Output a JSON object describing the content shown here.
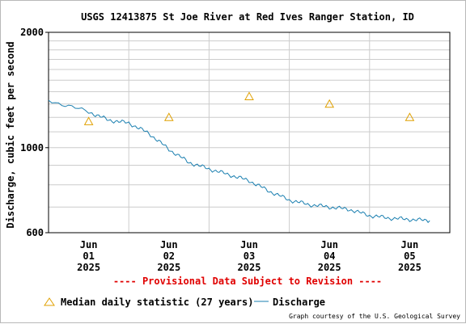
{
  "chart_data": {
    "type": "line",
    "title": "USGS 12413875 St Joe River at Red Ives Ranger Station, ID",
    "ylabel": "Discharge, cubic feet per second",
    "yscale": "log",
    "ylim": [
      600,
      2000
    ],
    "yticks": [
      "2000",
      "1000",
      "600"
    ],
    "xlim": [
      "2025-05-31 12:00",
      "2025-06-05 12:00"
    ],
    "xticks": [
      {
        "day": "Jun",
        "date": "01",
        "year": "2025"
      },
      {
        "day": "Jun",
        "date": "02",
        "year": "2025"
      },
      {
        "day": "Jun",
        "date": "03",
        "year": "2025"
      },
      {
        "day": "Jun",
        "date": "04",
        "year": "2025"
      },
      {
        "day": "Jun",
        "date": "05",
        "year": "2025"
      }
    ],
    "grid": true,
    "legend_position": "bottom",
    "series": [
      {
        "name": "Discharge",
        "color": "#1a7fb0",
        "x": [
          "2025-05-31 12:00",
          "2025-06-01 00:00",
          "2025-06-01 06:00",
          "2025-06-01 12:00",
          "2025-06-01 18:00",
          "2025-06-02 00:00",
          "2025-06-02 06:00",
          "2025-06-02 12:00",
          "2025-06-02 18:00",
          "2025-06-03 00:00",
          "2025-06-03 06:00",
          "2025-06-03 12:00",
          "2025-06-03 18:00",
          "2025-06-04 00:00",
          "2025-06-04 06:00",
          "2025-06-04 12:00",
          "2025-06-04 18:00",
          "2025-06-05 00:00",
          "2025-06-05 06:00"
        ],
        "values": [
          1330,
          1240,
          1180,
          1160,
          1090,
          990,
          915,
          880,
          850,
          820,
          770,
          730,
          710,
          700,
          690,
          665,
          655,
          650,
          645
        ]
      },
      {
        "name": "Median daily statistic (27 years)",
        "color": "#e0a000",
        "marker": "triangle",
        "x": [
          "2025-06-01 00:00",
          "2025-06-02 00:00",
          "2025-06-03 00:00",
          "2025-06-04 00:00",
          "2025-06-05 00:00"
        ],
        "values": [
          1170,
          1200,
          1360,
          1300,
          1200
        ]
      }
    ],
    "annotation": "---- Provisional Data Subject to Revision ----",
    "credit": "Graph courtesy of the U.S. Geological Survey"
  }
}
